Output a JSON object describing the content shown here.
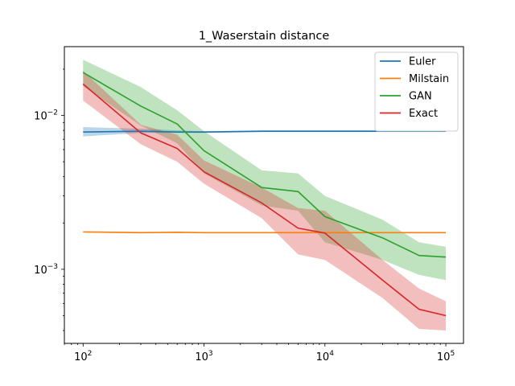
{
  "chart_data": {
    "type": "line",
    "title": "1_Waserstain distance",
    "xlabel": "",
    "ylabel": "",
    "xscale": "log",
    "yscale": "log",
    "xlim": [
      70,
      140000
    ],
    "ylim": [
      0.00033,
      0.028
    ],
    "xticks": [
      {
        "value": 100,
        "base": "10",
        "exp": "2"
      },
      {
        "value": 1000,
        "base": "10",
        "exp": "3"
      },
      {
        "value": 10000,
        "base": "10",
        "exp": "4"
      },
      {
        "value": 100000,
        "base": "10",
        "exp": "5"
      }
    ],
    "yticks": [
      {
        "value": 0.001,
        "base": "10",
        "exp": "−3"
      },
      {
        "value": 0.01,
        "base": "10",
        "exp": "−2"
      }
    ],
    "grid": false,
    "legend_position": "top-right",
    "x": [
      100,
      300,
      600,
      1000,
      3000,
      6000,
      10000,
      30000,
      60000,
      100000
    ],
    "series": [
      {
        "name": "Euler",
        "color": "#1f77b4",
        "values": [
          0.0078,
          0.0079,
          0.0078,
          0.0078,
          0.0079,
          0.0079,
          0.0079,
          0.0079,
          0.0079,
          0.0079
        ],
        "lower": [
          0.0073,
          0.0077,
          0.0077,
          0.0077,
          0.0078,
          0.0078,
          0.0078,
          0.0078,
          0.0078,
          0.0078
        ],
        "upper": [
          0.0084,
          0.0082,
          0.008,
          0.0079,
          0.008,
          0.008,
          0.008,
          0.008,
          0.008,
          0.008
        ]
      },
      {
        "name": "Milstain",
        "color": "#ff7f0e",
        "values": [
          0.00175,
          0.00173,
          0.00174,
          0.00173,
          0.00173,
          0.00173,
          0.00173,
          0.00173,
          0.00173,
          0.00173
        ],
        "lower": [
          0.00173,
          0.00172,
          0.00172,
          0.00172,
          0.00172,
          0.00172,
          0.00172,
          0.00172,
          0.00172,
          0.00172
        ],
        "upper": [
          0.00177,
          0.00175,
          0.00175,
          0.00174,
          0.00174,
          0.00174,
          0.00174,
          0.00174,
          0.00174,
          0.00174
        ]
      },
      {
        "name": "GAN",
        "color": "#2ca02c",
        "values": [
          0.019,
          0.0115,
          0.0088,
          0.0059,
          0.0034,
          0.0032,
          0.0022,
          0.0016,
          0.00123,
          0.0012
        ],
        "lower": [
          0.0155,
          0.0086,
          0.0066,
          0.0042,
          0.0026,
          0.0024,
          0.0015,
          0.00115,
          0.00092,
          0.00085
        ],
        "upper": [
          0.023,
          0.0153,
          0.0108,
          0.0079,
          0.0044,
          0.0042,
          0.003,
          0.0021,
          0.0015,
          0.0014
        ]
      },
      {
        "name": "Exact",
        "color": "#d62728",
        "values": [
          0.016,
          0.0077,
          0.0061,
          0.0043,
          0.0027,
          0.00185,
          0.00172,
          0.00085,
          0.00055,
          0.0005
        ],
        "lower": [
          0.0125,
          0.0065,
          0.005,
          0.0036,
          0.00215,
          0.00125,
          0.00115,
          0.00065,
          0.00041,
          0.0004
        ],
        "upper": [
          0.0195,
          0.0087,
          0.0075,
          0.0051,
          0.0034,
          0.0025,
          0.0024,
          0.00115,
          0.00075,
          0.00062
        ]
      }
    ]
  }
}
